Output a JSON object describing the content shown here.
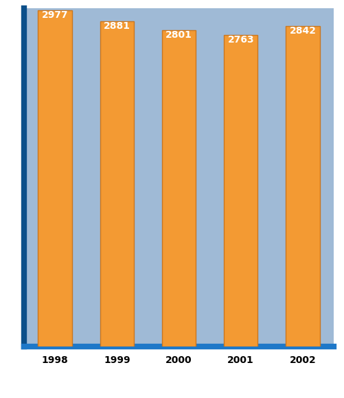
{
  "chart_data": {
    "type": "bar",
    "categories": [
      "1998",
      "1999",
      "2000",
      "2001",
      "2002"
    ],
    "values": [
      2977,
      2881,
      2801,
      2763,
      2842
    ],
    "color": "#f39a33",
    "ylim": [
      0,
      3000
    ],
    "yticks": [],
    "data_labels": true,
    "grid": false,
    "tick_labels": "x"
  }
}
